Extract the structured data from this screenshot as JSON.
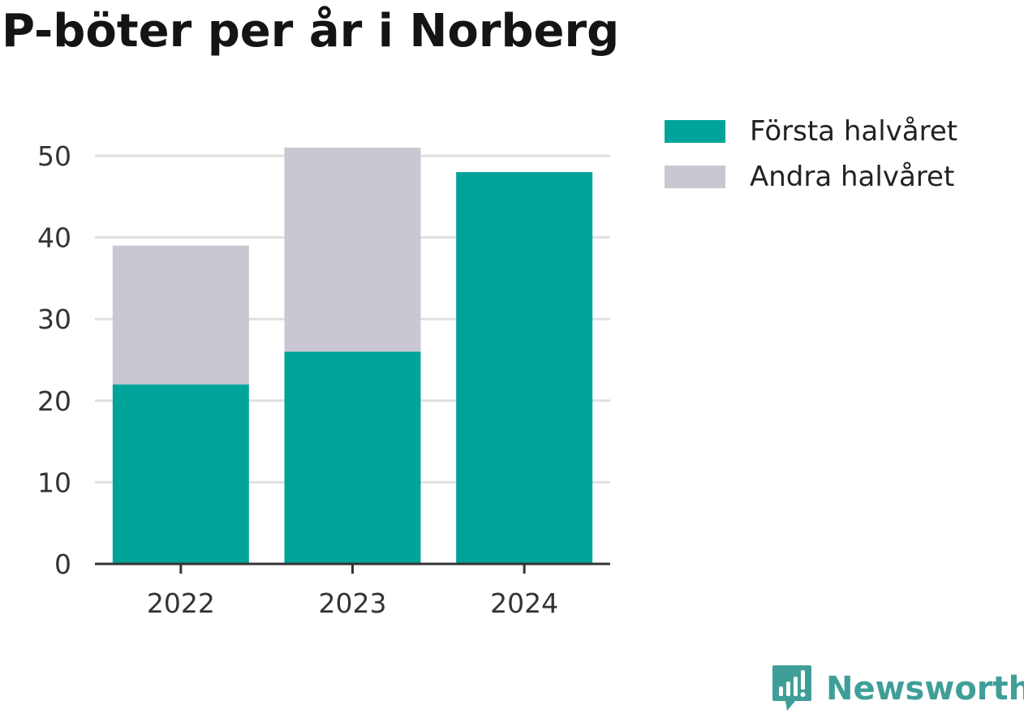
{
  "chart_data": {
    "type": "bar",
    "stacked": true,
    "title": "P-böter per år i Norberg",
    "categories": [
      "2022",
      "2023",
      "2024"
    ],
    "series": [
      {
        "name": "Första halvåret",
        "color": "#00a39a",
        "values": [
          22,
          26,
          48
        ]
      },
      {
        "name": "Andra halvåret",
        "color": "#c8c7d2",
        "values": [
          17,
          25,
          0
        ]
      }
    ],
    "xlabel": "",
    "ylabel": "",
    "ylim": [
      0,
      50
    ],
    "yticks": [
      0,
      10,
      20,
      30,
      40,
      50
    ],
    "grid": true,
    "legend_position": "top-right"
  },
  "branding": {
    "name": "Newsworthy",
    "logo_icon": "newsworthy-chart-bubble-icon",
    "color": "#3f9f98"
  }
}
